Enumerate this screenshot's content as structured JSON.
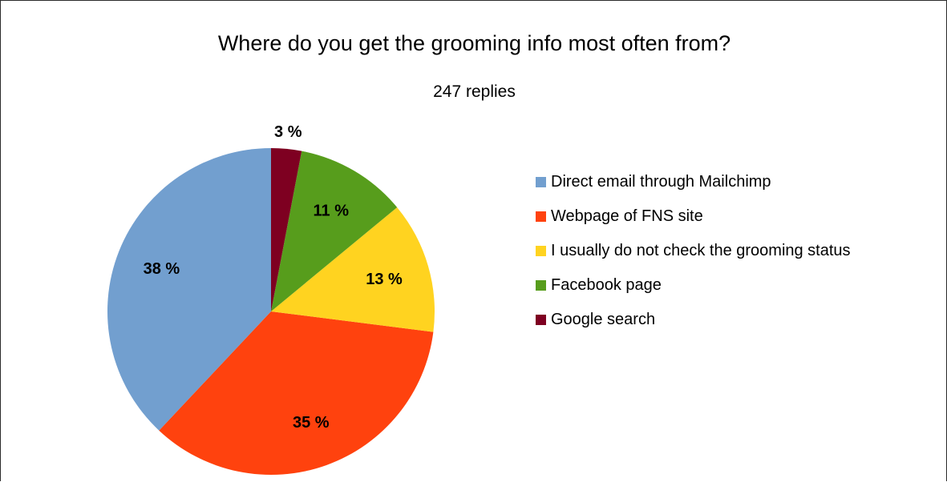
{
  "chart_data": {
    "type": "pie",
    "title": "Where do you get the grooming info most often from?",
    "subtitle": "247 replies",
    "slices": [
      {
        "label": "Direct email through Mailchimp",
        "value": 38,
        "display": "38 %",
        "color": "#729fcf"
      },
      {
        "label": "Webpage of FNS site",
        "value": 35,
        "display": "35 %",
        "color": "#ff420e"
      },
      {
        "label": "I usually do not check the grooming status",
        "value": 13,
        "display": "13 %",
        "color": "#ffd320"
      },
      {
        "label": "Facebook page",
        "value": 11,
        "display": "11 %",
        "color": "#579d1c"
      },
      {
        "label": "Google search",
        "value": 3,
        "display": "3 %",
        "color": "#7e0021"
      }
    ],
    "legend_position": "right"
  }
}
